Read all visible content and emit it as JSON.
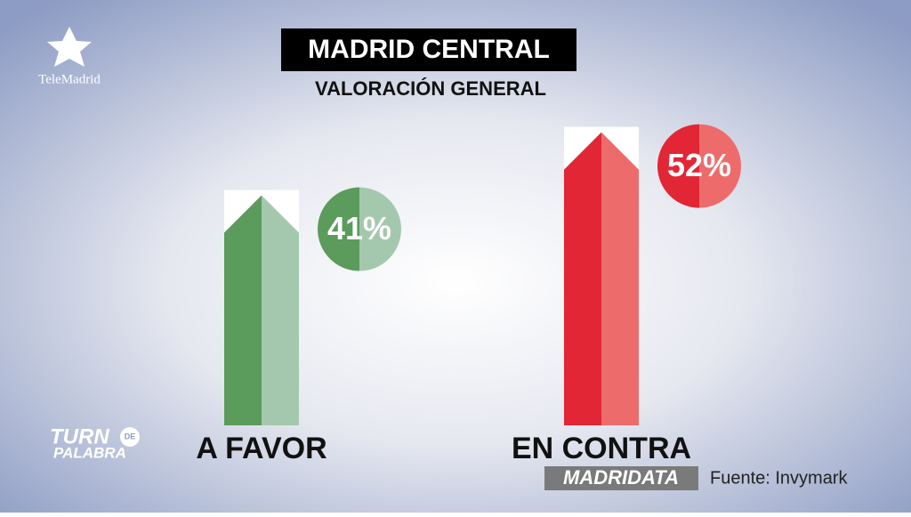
{
  "chart_data": {
    "type": "bar",
    "title": "MADRID CENTRAL",
    "subtitle": "VALORACIÓN GENERAL",
    "categories": [
      "A FAVOR",
      "EN CONTRA"
    ],
    "values": [
      41,
      52
    ],
    "value_labels": [
      "41%",
      "52%"
    ],
    "colors": [
      [
        "#5b9b5b",
        "#a4c8ae"
      ],
      [
        "#e22636",
        "#ee6b6b"
      ]
    ]
  },
  "branding": {
    "channel": "TeleMadrid",
    "program": [
      "TURN",
      "DE",
      "PALABRA"
    ],
    "section": "MADRIDATA",
    "source": "Fuente: Invymark"
  }
}
